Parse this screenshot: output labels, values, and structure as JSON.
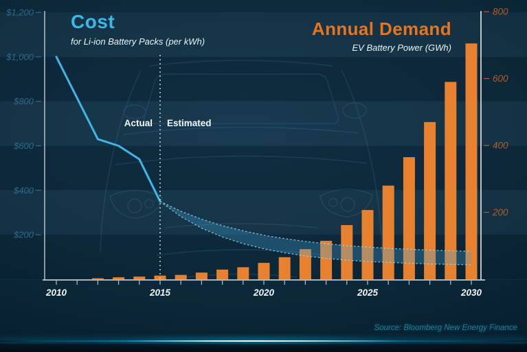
{
  "header": {
    "cost_title": "Cost",
    "cost_subtitle": "for Li-ion Battery Packs (per kWh)",
    "demand_title": "Annual Demand",
    "demand_subtitle": "EV Battery Power (GWh)"
  },
  "annotations": {
    "actual_label": "Actual",
    "estimated_label": "Estimated",
    "source": "Source: Bloomberg New Energy Finance"
  },
  "colors": {
    "cost_title": "#3ab8e8",
    "demand_title": "#e8751d",
    "line": "#41b6e6",
    "band_fill": "#41a8dd",
    "band_edge": "#9ad9ee",
    "bar": "#e8812f",
    "left_tick_label": "#2e6a8c",
    "right_tick_label": "#b55d28",
    "axis": "#c6d3da",
    "year_label": "#f0f6f9",
    "divider": "#e9f4f8",
    "source_text": "#1d7e95",
    "car_outline": "#5fb3d9"
  },
  "chart_data": {
    "type": "combo (line + projection band + bar)",
    "title": "Li-ion battery pack cost vs annual EV battery demand, 2010-2030",
    "x_axis": {
      "min": 2010,
      "max": 2030,
      "tick_interval": 1,
      "labeled_ticks": [
        2010,
        2015,
        2020,
        2025,
        2030
      ]
    },
    "left_axis": {
      "title": "Cost for Li-ion Battery Packs ($ per kWh)",
      "min": 0,
      "max": 1200,
      "ticks": [
        {
          "value": 1200,
          "label": "$1,200"
        },
        {
          "value": 1000,
          "label": "$1,000"
        },
        {
          "value": 800,
          "label": "$800"
        },
        {
          "value": 600,
          "label": "$600"
        },
        {
          "value": 400,
          "label": "$400"
        },
        {
          "value": 200,
          "label": "$200"
        }
      ]
    },
    "right_axis": {
      "title": "EV Battery Power (GWh)",
      "min": 0,
      "max": 800,
      "ticks": [
        {
          "value": 800,
          "label": "800"
        },
        {
          "value": 600,
          "label": "600"
        },
        {
          "value": 400,
          "label": "400"
        },
        {
          "value": 200,
          "label": "200"
        }
      ]
    },
    "divider_year": 2015,
    "cost_line_actual": {
      "name": "Actual cost ($/kWh)",
      "points": [
        [
          2010,
          1000
        ],
        [
          2011,
          815
        ],
        [
          2012,
          630
        ],
        [
          2013,
          600
        ],
        [
          2014,
          540
        ],
        [
          2015,
          350
        ]
      ]
    },
    "cost_band_estimated": {
      "name": "Estimated cost range ($/kWh)",
      "years": [
        2015,
        2016,
        2017,
        2018,
        2019,
        2020,
        2021,
        2022,
        2023,
        2024,
        2025,
        2026,
        2027,
        2028,
        2029,
        2030
      ],
      "upper": [
        350,
        306,
        270,
        241,
        218,
        198,
        183,
        170,
        160,
        151,
        145,
        139,
        135,
        131,
        128,
        126
      ],
      "lower": [
        350,
        282,
        230,
        190,
        160,
        137,
        119,
        105,
        94,
        86,
        80,
        76,
        72,
        69,
        67,
        65
      ]
    },
    "demand_bars": {
      "name": "Annual demand (GWh)",
      "points": [
        [
          2012,
          3
        ],
        [
          2013,
          6
        ],
        [
          2014,
          8
        ],
        [
          2015,
          11
        ],
        [
          2016,
          13
        ],
        [
          2017,
          20
        ],
        [
          2018,
          29
        ],
        [
          2019,
          36
        ],
        [
          2020,
          49
        ],
        [
          2021,
          66
        ],
        [
          2022,
          90
        ],
        [
          2023,
          115
        ],
        [
          2024,
          162
        ],
        [
          2025,
          207
        ],
        [
          2026,
          280
        ],
        [
          2027,
          365
        ],
        [
          2028,
          470
        ],
        [
          2029,
          590
        ],
        [
          2030,
          705
        ]
      ]
    }
  }
}
